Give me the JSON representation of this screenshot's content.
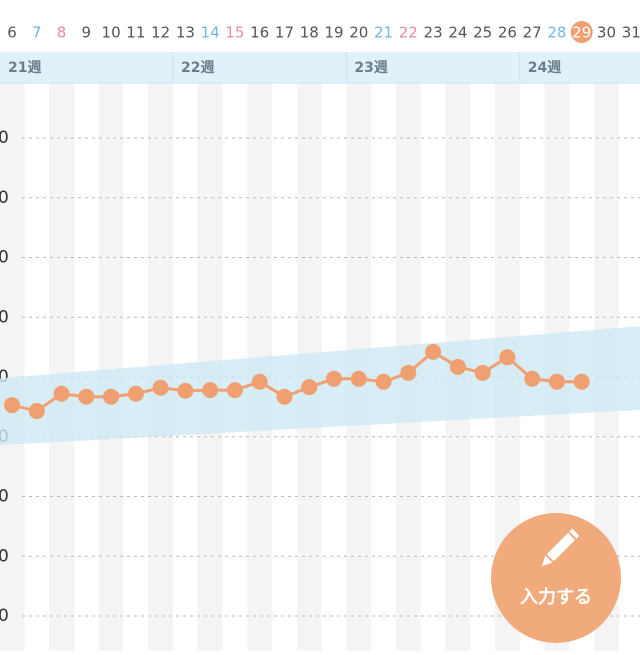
{
  "chart_data": {
    "type": "line",
    "categories": [
      "6",
      "7",
      "8",
      "9",
      "10",
      "11",
      "12",
      "13",
      "14",
      "15",
      "16",
      "17",
      "18",
      "19",
      "20",
      "21",
      "22",
      "23",
      "24",
      "25",
      "26",
      "27",
      "28",
      "29",
      "30",
      "31"
    ],
    "category_colors": [
      "#555555",
      "#6fb8d8",
      "#e68aa6",
      "#555555",
      "#555555",
      "#555555",
      "#555555",
      "#555555",
      "#6fb8d8",
      "#e68aa6",
      "#555555",
      "#555555",
      "#555555",
      "#555555",
      "#555555",
      "#6fb8d8",
      "#e68aa6",
      "#555555",
      "#555555",
      "#555555",
      "#555555",
      "#555555",
      "#6fb8d8",
      "#ffffff",
      "#555555",
      "#555555"
    ],
    "highlight_color": "#f0a070",
    "highlight_index": 23,
    "weeks": [
      "21週",
      "22週",
      "23週",
      "24週"
    ],
    "values": [
      3.53,
      3.43,
      3.72,
      3.67,
      3.67,
      3.72,
      3.82,
      3.77,
      3.78,
      3.78,
      3.92,
      3.67,
      3.83,
      3.97,
      3.97,
      3.92,
      4.07,
      4.42,
      4.17,
      4.07,
      4.33,
      3.97,
      3.92,
      3.92,
      null,
      null
    ],
    "color": "#f0a070",
    "band": {
      "start": [
        2.86,
        3.98
      ],
      "end": [
        3.45,
        4.85
      ],
      "color": "#cfe8f5"
    },
    "ylim": [
      0,
      8
    ],
    "yticks": [
      {
        "value": 8,
        "label": "0"
      },
      {
        "value": 7,
        "label": "0"
      },
      {
        "value": 6,
        "label": "0"
      },
      {
        "value": 5,
        "label": "0"
      },
      {
        "value": 4,
        "label": "0"
      },
      {
        "value": 3,
        "label": "0"
      },
      {
        "value": 2,
        "label": "0"
      },
      {
        "value": 1,
        "label": "0"
      },
      {
        "value": 0,
        "label": "0"
      }
    ],
    "grid": true
  },
  "button": {
    "label": "入力する"
  }
}
